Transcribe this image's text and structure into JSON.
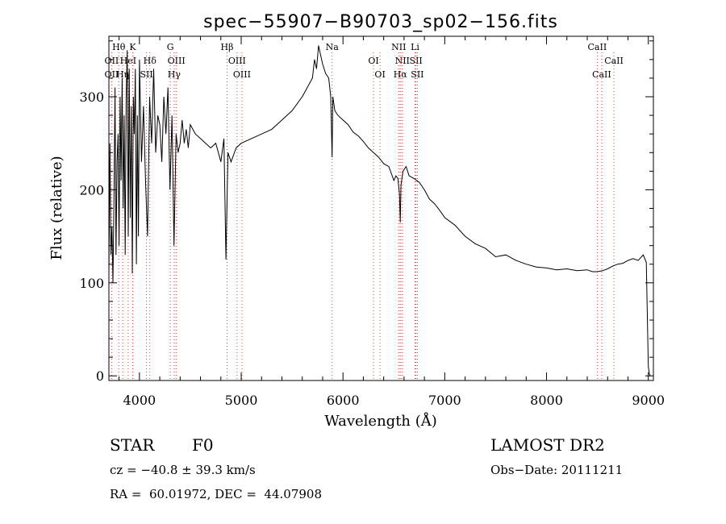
{
  "chart_data": {
    "type": "line",
    "title": "spec−55907−B90703_sp02−156.fits",
    "xlabel": "Wavelength (Å)",
    "ylabel": "Flux (relative)",
    "xlim": [
      3700,
      9050
    ],
    "ylim": [
      -5,
      365
    ],
    "xticks": [
      4000,
      5000,
      6000,
      7000,
      8000,
      9000
    ],
    "yticks": [
      0,
      100,
      200,
      300
    ],
    "grid": false,
    "series": [
      {
        "x": [
          3700,
          3710,
          3720,
          3730,
          3740,
          3750,
          3760,
          3770,
          3780,
          3790,
          3800,
          3810,
          3820,
          3830,
          3840,
          3850,
          3860,
          3870,
          3880,
          3890,
          3900,
          3910,
          3920,
          3930,
          3940,
          3950,
          3960,
          3970,
          3980,
          3990,
          4000,
          4020,
          4040,
          4060,
          4080,
          4100,
          4120,
          4140,
          4160,
          4180,
          4200,
          4220,
          4240,
          4260,
          4280,
          4300,
          4320,
          4340,
          4360,
          4380,
          4400,
          4420,
          4440,
          4460,
          4480,
          4500,
          4550,
          4600,
          4650,
          4700,
          4750,
          4800,
          4830,
          4850,
          4861,
          4870,
          4900,
          4950,
          5000,
          5100,
          5200,
          5300,
          5400,
          5500,
          5600,
          5650,
          5700,
          5720,
          5740,
          5760,
          5780,
          5800,
          5830,
          5860,
          5880,
          5893,
          5900,
          5920,
          5950,
          6000,
          6050,
          6100,
          6150,
          6200,
          6250,
          6300,
          6350,
          6400,
          6450,
          6500,
          6520,
          6540,
          6555,
          6563,
          6570,
          6590,
          6620,
          6650,
          6700,
          6750,
          6800,
          6850,
          6900,
          6950,
          7000,
          7100,
          7200,
          7300,
          7400,
          7500,
          7600,
          7700,
          7800,
          7900,
          8000,
          8100,
          8200,
          8300,
          8400,
          8450,
          8500,
          8550,
          8600,
          8650,
          8700,
          8750,
          8800,
          8850,
          8900,
          8950,
          8980,
          9000,
          9010,
          9020
        ],
        "y": [
          110,
          250,
          130,
          160,
          100,
          190,
          310,
          130,
          230,
          260,
          140,
          300,
          210,
          320,
          180,
          280,
          130,
          300,
          350,
          150,
          330,
          170,
          290,
          110,
          300,
          260,
          330,
          120,
          280,
          150,
          340,
          230,
          290,
          210,
          150,
          300,
          250,
          330,
          240,
          280,
          270,
          230,
          300,
          260,
          310,
          200,
          280,
          140,
          260,
          240,
          250,
          275,
          250,
          265,
          245,
          270,
          260,
          255,
          250,
          245,
          250,
          230,
          255,
          125,
          190,
          240,
          230,
          245,
          250,
          255,
          260,
          265,
          275,
          285,
          300,
          310,
          320,
          340,
          330,
          355,
          345,
          335,
          325,
          320,
          300,
          235,
          300,
          285,
          280,
          275,
          270,
          262,
          258,
          252,
          245,
          240,
          235,
          228,
          225,
          210,
          215,
          212,
          195,
          165,
          205,
          220,
          225,
          215,
          212,
          208,
          200,
          190,
          185,
          178,
          170,
          162,
          150,
          142,
          137,
          128,
          130,
          124,
          120,
          117,
          116,
          114,
          115,
          113,
          114,
          112,
          112,
          113,
          115,
          118,
          120,
          121,
          124,
          126,
          124,
          130,
          122,
          10,
          2,
          0
        ]
      }
    ],
    "spectral_lines": [
      {
        "label": "Hθ",
        "x": 3797,
        "row": 1
      },
      {
        "label": "K",
        "x": 3934,
        "row": 1
      },
      {
        "label": "OII",
        "x": 3727,
        "row": 2
      },
      {
        "label": "HeI",
        "x": 3889,
        "row": 2
      },
      {
        "label": "OII",
        "x": 3727,
        "row": 3
      },
      {
        "label": "Hη",
        "x": 3835,
        "row": 3
      },
      {
        "label": "Hδ",
        "x": 4102,
        "row": 2
      },
      {
        "label": "SII",
        "x": 4069,
        "row": 3
      },
      {
        "label": "G",
        "x": 4304,
        "row": 1
      },
      {
        "label": "OIII",
        "x": 4363,
        "row": 2
      },
      {
        "label": "Hγ",
        "x": 4341,
        "row": 3
      },
      {
        "label": "Hβ",
        "x": 4861,
        "row": 1
      },
      {
        "label": "OIII",
        "x": 4959,
        "row": 2
      },
      {
        "label": "OIII",
        "x": 5007,
        "row": 3
      },
      {
        "label": "Na",
        "x": 5893,
        "row": 1
      },
      {
        "label": "OI",
        "x": 6300,
        "row": 2
      },
      {
        "label": "OI",
        "x": 6364,
        "row": 3
      },
      {
        "label": "NII",
        "x": 6548,
        "row": 1
      },
      {
        "label": "Li",
        "x": 6708,
        "row": 1
      },
      {
        "label": "NII",
        "x": 6583,
        "row": 2
      },
      {
        "label": "SII",
        "x": 6717,
        "row": 2
      },
      {
        "label": "Hα",
        "x": 6563,
        "row": 3
      },
      {
        "label": "SII",
        "x": 6731,
        "row": 3
      },
      {
        "label": "CaII",
        "x": 8498,
        "row": 1
      },
      {
        "label": "CaII",
        "x": 8542,
        "row": 3
      },
      {
        "label": "CaII",
        "x": 8662,
        "row": 2
      }
    ],
    "colors": {
      "spectrum": "#000000",
      "line_markers": "#e83a2a"
    }
  },
  "info": {
    "class_label": "STAR",
    "subclass": "F0",
    "survey": "LAMOST DR2",
    "cz": "cz = −40.8 ± 39.3 km/s",
    "obs_date": "Obs−Date: 20111211",
    "coords": "RA =  60.01972, DEC =  44.07908"
  }
}
